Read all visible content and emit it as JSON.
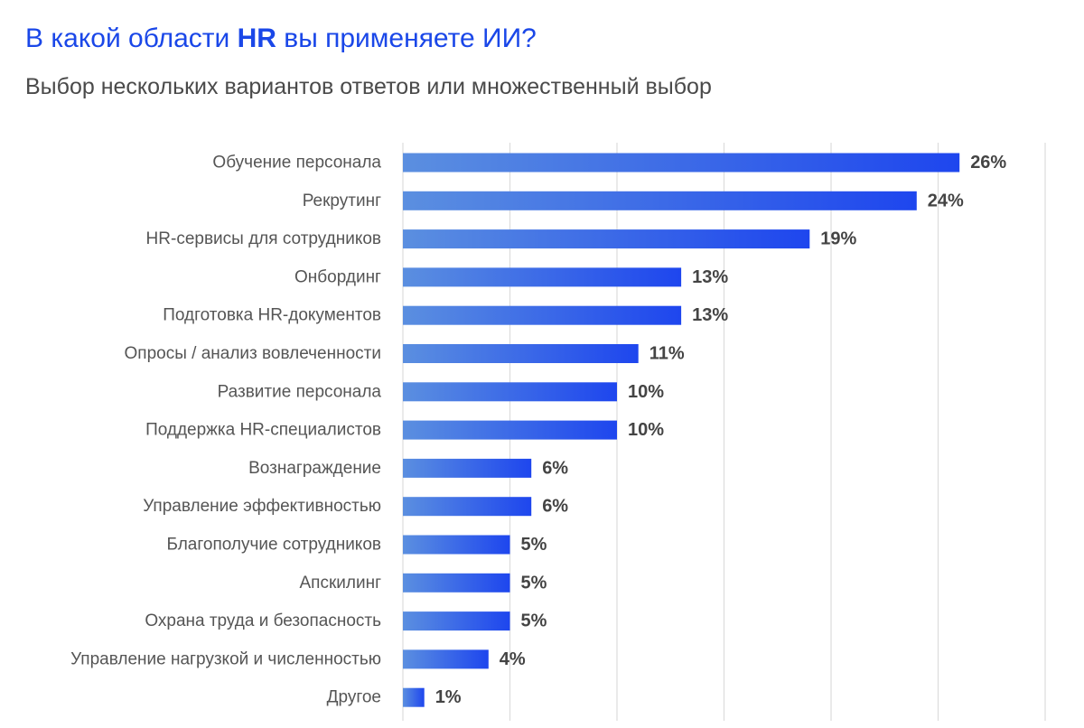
{
  "title": {
    "before": "В какой области ",
    "highlight": "HR",
    "after": " вы применяете ИИ?"
  },
  "subtitle": "Выбор нескольких вариантов ответов или множественный выбор",
  "colors": {
    "title": "#1a47e8",
    "bar_start": "#5b8fe0",
    "bar_end": "#1e46ee",
    "grid": "#dcdcdc",
    "label": "#555555",
    "value": "#444444"
  },
  "chart_data": {
    "type": "bar",
    "orientation": "horizontal",
    "categories": [
      "Обучение персонала",
      "Рекрутинг",
      "HR-сервисы для сотрудников",
      "Онбординг",
      "Подготовка HR-документов",
      "Опросы / анализ вовлеченности",
      "Развитие персонала",
      "Поддержка HR-специалистов",
      "Вознаграждение",
      "Управление эффективностью",
      "Благополучие сотрудников",
      "Апскилинг",
      "Охрана труда и безопасность",
      "Управление нагрузкой и численностью",
      "Другое"
    ],
    "values": [
      26,
      24,
      19,
      13,
      13,
      11,
      10,
      10,
      6,
      6,
      5,
      5,
      5,
      4,
      1
    ],
    "value_labels": [
      "26%",
      "24%",
      "19%",
      "13%",
      "13%",
      "11%",
      "10%",
      "10%",
      "6%",
      "6%",
      "5%",
      "5%",
      "5%",
      "4%",
      "1%"
    ],
    "xlim": [
      0,
      30
    ],
    "grid": true,
    "gridline_step": 5
  }
}
